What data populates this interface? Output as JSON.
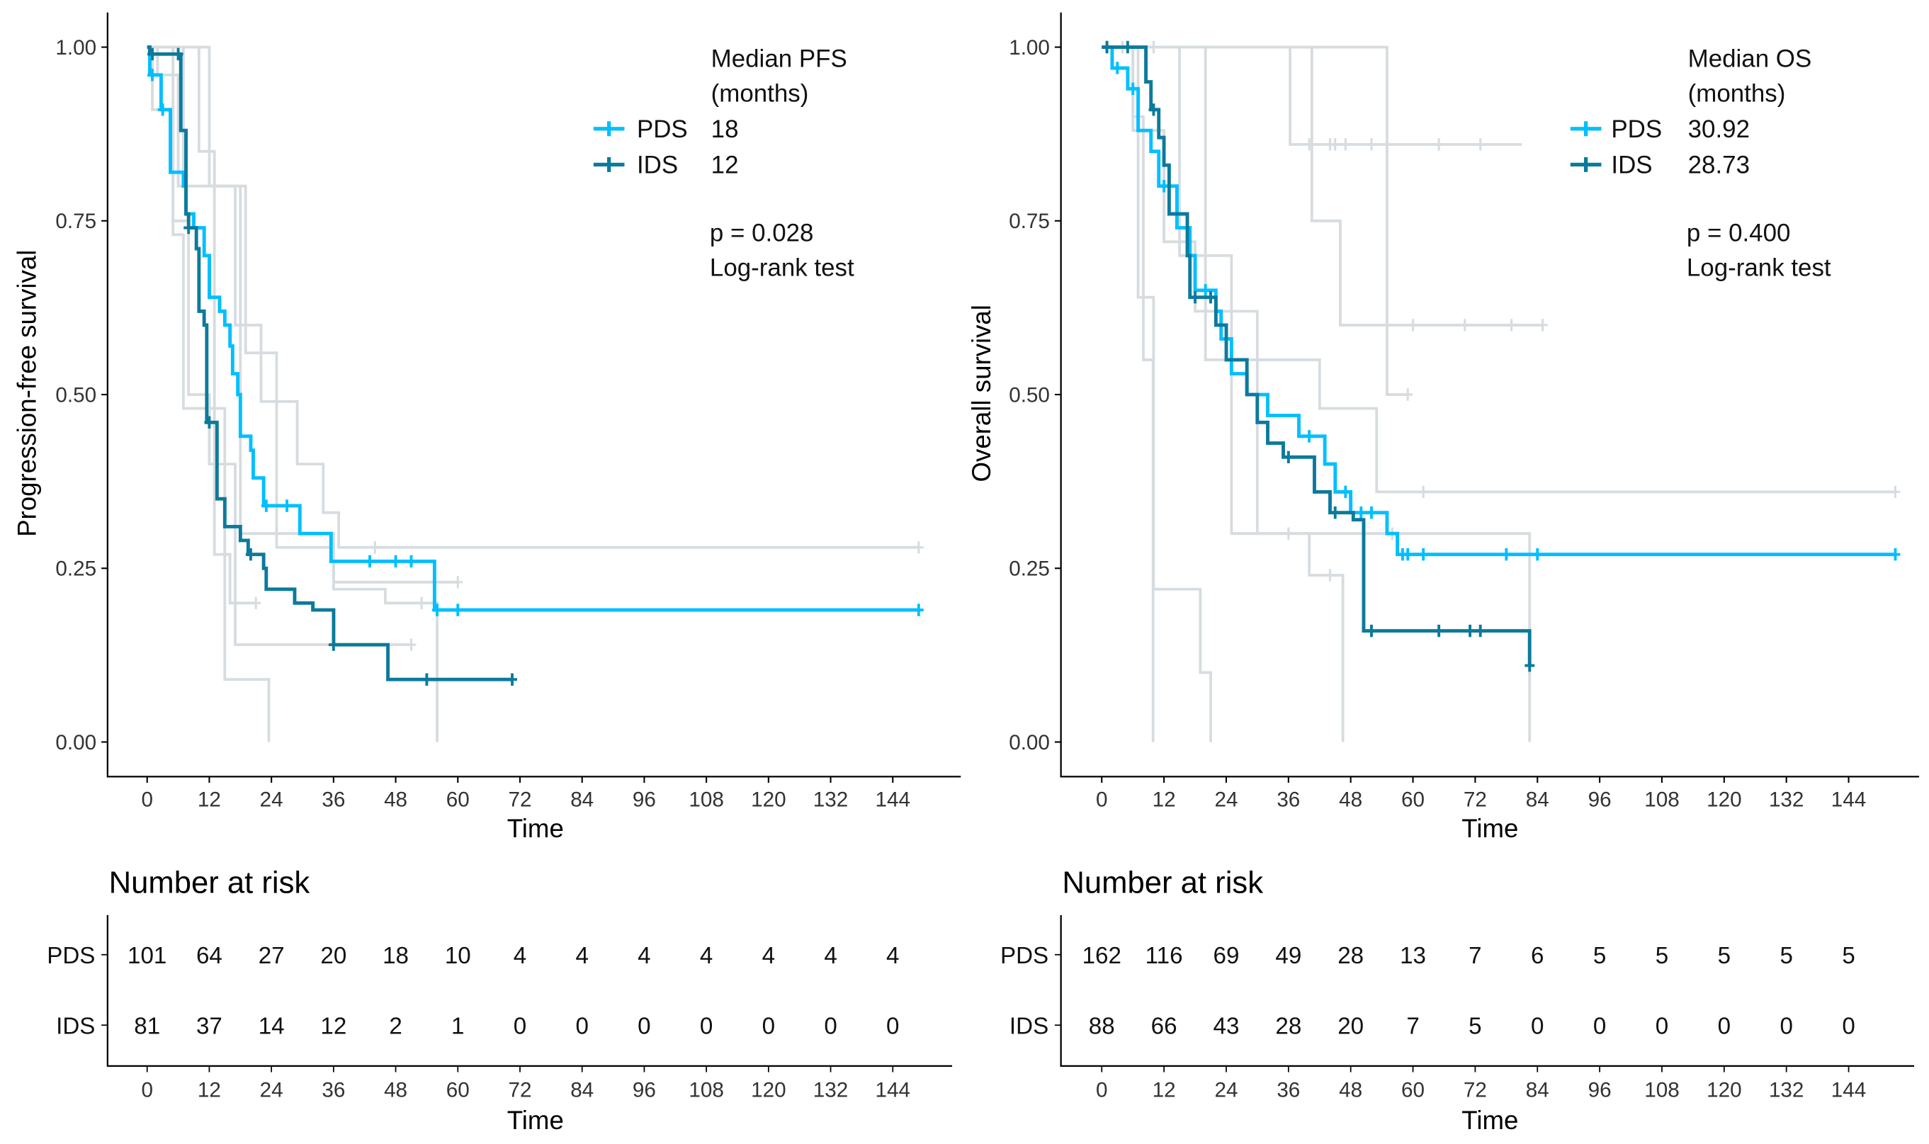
{
  "colors": {
    "PDS": "#00bfff",
    "IDS": "#0c7a9c",
    "background": "#d6dce0"
  },
  "chart_data": [
    {
      "type": "line",
      "subtype": "kaplan-meier",
      "xlabel": "Time",
      "ylabel": "Progression-free survival",
      "xticks": [
        0,
        12,
        24,
        36,
        48,
        60,
        72,
        84,
        96,
        108,
        120,
        132,
        144
      ],
      "yticks": [
        "0.00",
        "0.25",
        "0.50",
        "0.75",
        "1.00"
      ],
      "xlim": [
        -7,
        158
      ],
      "ylim": [
        -0.05,
        1.05
      ],
      "legend": {
        "title1": "Median PFS",
        "title2": "(months)",
        "position": "top-right",
        "entries": [
          {
            "name": "PDS",
            "value": "18"
          },
          {
            "name": "IDS",
            "value": "12"
          }
        ]
      },
      "pvalue": "p = 0.028",
      "test": "Log-rank test",
      "series": [
        {
          "name": "PDS",
          "end": 149,
          "steps": [
            [
              0.5,
              0.96
            ],
            [
              2.7,
              0.91
            ],
            [
              4.5,
              0.82
            ],
            [
              7,
              0.8
            ],
            [
              7.5,
              0.76
            ],
            [
              9,
              0.74
            ],
            [
              11,
              0.7
            ],
            [
              12,
              0.64
            ],
            [
              14,
              0.62
            ],
            [
              15,
              0.6
            ],
            [
              16,
              0.57
            ],
            [
              16.5,
              0.53
            ],
            [
              17.5,
              0.5
            ],
            [
              18,
              0.44
            ],
            [
              20,
              0.42
            ],
            [
              20.5,
              0.38
            ],
            [
              22.5,
              0.34
            ],
            [
              29.5,
              0.3
            ],
            [
              35.5,
              0.26
            ],
            [
              55.5,
              0.19
            ]
          ],
          "censor": [
            1,
            3,
            23,
            27,
            43,
            48,
            51,
            56,
            60,
            149
          ]
        },
        {
          "name": "IDS",
          "end": 70.5,
          "steps": [
            [
              0.5,
              0.99
            ],
            [
              5,
              0.99
            ],
            [
              6.5,
              0.88
            ],
            [
              7.5,
              0.76
            ],
            [
              8,
              0.74
            ],
            [
              9.5,
              0.71
            ],
            [
              10,
              0.62
            ],
            [
              11,
              0.6
            ],
            [
              11.5,
              0.46
            ],
            [
              13.5,
              0.35
            ],
            [
              15,
              0.31
            ],
            [
              18,
              0.29
            ],
            [
              19.5,
              0.27
            ],
            [
              22.5,
              0.25
            ],
            [
              23,
              0.22
            ],
            [
              28.5,
              0.2
            ],
            [
              32,
              0.19
            ],
            [
              36,
              0.14
            ],
            [
              46.5,
              0.09
            ]
          ],
          "censor": [
            1,
            6,
            8,
            12,
            20,
            36,
            54,
            70.5
          ]
        }
      ],
      "background_curves": [
        {
          "end": 23.5,
          "steps": [
            [
              1,
              0.91
            ],
            [
              5,
              0.73
            ],
            [
              7,
              0.48
            ],
            [
              15,
              0.09
            ],
            [
              23.5,
              0
            ]
          ],
          "censor": []
        },
        {
          "end": 21,
          "steps": [
            [
              2,
              0.96
            ],
            [
              6,
              0.8
            ],
            [
              9,
              0.8
            ],
            [
              13,
              0.27
            ],
            [
              16,
              0.2
            ]
          ],
          "censor": [
            21
          ]
        },
        {
          "end": 149,
          "steps": [
            [
              7,
              0.8
            ],
            [
              17,
              0.6
            ],
            [
              22,
              0.49
            ],
            [
              29,
              0.4
            ],
            [
              34,
              0.33
            ],
            [
              37,
              0.28
            ]
          ],
          "censor": [
            44,
            149
          ]
        },
        {
          "end": 60,
          "steps": [
            [
              10,
              0.85
            ],
            [
              13,
              0.8
            ],
            [
              19,
              0.56
            ],
            [
              25,
              0.28
            ],
            [
              36,
              0.23
            ]
          ],
          "censor": [
            60
          ]
        },
        {
          "end": 56,
          "steps": [
            [
              12,
              0.8
            ],
            [
              18,
              0.3
            ],
            [
              36,
              0.22
            ],
            [
              46,
              0.2
            ],
            [
              56,
              0
            ]
          ],
          "censor": [
            53
          ]
        },
        {
          "end": 51,
          "steps": [
            [
              5,
              0.75
            ],
            [
              8,
              0.5
            ],
            [
              12,
              0.4
            ],
            [
              17,
              0.14
            ]
          ],
          "censor": [
            51
          ]
        }
      ],
      "risk_table": {
        "title": "Number at risk",
        "xlabel": "Time",
        "rows": [
          {
            "name": "PDS",
            "values": [
              101,
              64,
              27,
              20,
              18,
              10,
              4,
              4,
              4,
              4,
              4,
              4,
              4
            ]
          },
          {
            "name": "IDS",
            "values": [
              81,
              37,
              14,
              12,
              2,
              1,
              0,
              0,
              0,
              0,
              0,
              0,
              0
            ]
          }
        ]
      }
    },
    {
      "type": "line",
      "subtype": "kaplan-meier",
      "xlabel": "Time",
      "ylabel": "Overall survival",
      "xticks": [
        0,
        12,
        24,
        36,
        48,
        60,
        72,
        84,
        96,
        108,
        120,
        132,
        144
      ],
      "yticks": [
        "0.00",
        "0.25",
        "0.50",
        "0.75",
        "1.00"
      ],
      "xlim": [
        -7,
        158
      ],
      "ylim": [
        -0.05,
        1.05
      ],
      "legend": {
        "title1": "Median OS",
        "title2": "(months)",
        "position": "top-right",
        "entries": [
          {
            "name": "PDS",
            "value": "30.92"
          },
          {
            "name": "IDS",
            "value": "28.73"
          }
        ]
      },
      "pvalue": "p = 0.400",
      "test": "Log-rank test",
      "series": [
        {
          "name": "PDS",
          "end": 153,
          "steps": [
            [
              2,
              0.97
            ],
            [
              5,
              0.94
            ],
            [
              7,
              0.88
            ],
            [
              9.5,
              0.85
            ],
            [
              11,
              0.8
            ],
            [
              14.5,
              0.74
            ],
            [
              17,
              0.7
            ],
            [
              18,
              0.65
            ],
            [
              22,
              0.62
            ],
            [
              23,
              0.58
            ],
            [
              25,
              0.53
            ],
            [
              28,
              0.5
            ],
            [
              32,
              0.47
            ],
            [
              38,
              0.44
            ],
            [
              43,
              0.4
            ],
            [
              45,
              0.36
            ],
            [
              48,
              0.33
            ],
            [
              55,
              0.3
            ],
            [
              57,
              0.27
            ]
          ],
          "censor": [
            1,
            3,
            6,
            12,
            20,
            40,
            47,
            50,
            52,
            58,
            59,
            62,
            78,
            84,
            153
          ]
        },
        {
          "name": "IDS",
          "end": 82.5,
          "steps": [
            [
              8.5,
              0.95
            ],
            [
              9.5,
              0.91
            ],
            [
              11,
              0.87
            ],
            [
              12,
              0.83
            ],
            [
              13,
              0.76
            ],
            [
              16.5,
              0.7
            ],
            [
              17,
              0.64
            ],
            [
              22,
              0.6
            ],
            [
              24,
              0.55
            ],
            [
              28,
              0.5
            ],
            [
              30,
              0.46
            ],
            [
              32,
              0.43
            ],
            [
              35,
              0.41
            ],
            [
              41,
              0.36
            ],
            [
              44,
              0.33
            ],
            [
              48.5,
              0.32
            ],
            [
              50.5,
              0.16
            ],
            [
              82.5,
              0.11
            ]
          ],
          "censor": [
            1,
            5,
            10,
            18,
            21,
            36,
            45,
            52,
            65,
            71,
            73,
            82.5
          ]
        }
      ],
      "background_curves": [
        {
          "end": 81,
          "steps": [
            [
              36.3,
              0.86
            ]
          ],
          "censor": [
            4,
            10,
            40,
            44,
            45,
            47,
            52,
            65,
            73
          ]
        },
        {
          "end": 59,
          "steps": [
            [
              55,
              0.5
            ]
          ],
          "censor": [
            59
          ]
        },
        {
          "end": 85,
          "steps": [
            [
              40.5,
              0.75
            ],
            [
              46,
              0.6
            ]
          ],
          "censor": [
            60,
            70,
            79,
            85
          ]
        },
        {
          "end": 153,
          "steps": [
            [
              6,
              0.88
            ],
            [
              12,
              0.72
            ],
            [
              18,
              0.62
            ],
            [
              30,
              0.55
            ],
            [
              42,
              0.48
            ],
            [
              53,
              0.36
            ]
          ],
          "censor": [
            62,
            153
          ]
        },
        {
          "end": 21,
          "steps": [
            [
              7,
              0.64
            ],
            [
              10,
              0.22
            ],
            [
              19,
              0.1
            ],
            [
              21,
              0
            ]
          ],
          "censor": []
        },
        {
          "end": 9.9,
          "steps": [
            [
              6,
              0.9
            ],
            [
              8,
              0.55
            ],
            [
              9.9,
              0
            ]
          ],
          "censor": []
        },
        {
          "end": 46.5,
          "steps": [
            [
              15,
              0.7
            ],
            [
              25,
              0.3
            ],
            [
              40,
              0.24
            ],
            [
              46.5,
              0
            ]
          ],
          "censor": [
            36,
            44
          ]
        },
        {
          "end": 82.5,
          "steps": [
            [
              20,
              0.55
            ],
            [
              30,
              0.3
            ],
            [
              50,
              0.3
            ],
            [
              82.5,
              0
            ]
          ],
          "censor": [
            56
          ]
        }
      ],
      "risk_table": {
        "title": "Number at risk",
        "xlabel": "Time",
        "rows": [
          {
            "name": "PDS",
            "values": [
              162,
              116,
              69,
              49,
              28,
              13,
              7,
              6,
              5,
              5,
              5,
              5,
              5
            ]
          },
          {
            "name": "IDS",
            "values": [
              88,
              66,
              43,
              28,
              20,
              7,
              5,
              0,
              0,
              0,
              0,
              0,
              0
            ]
          }
        ]
      }
    }
  ]
}
